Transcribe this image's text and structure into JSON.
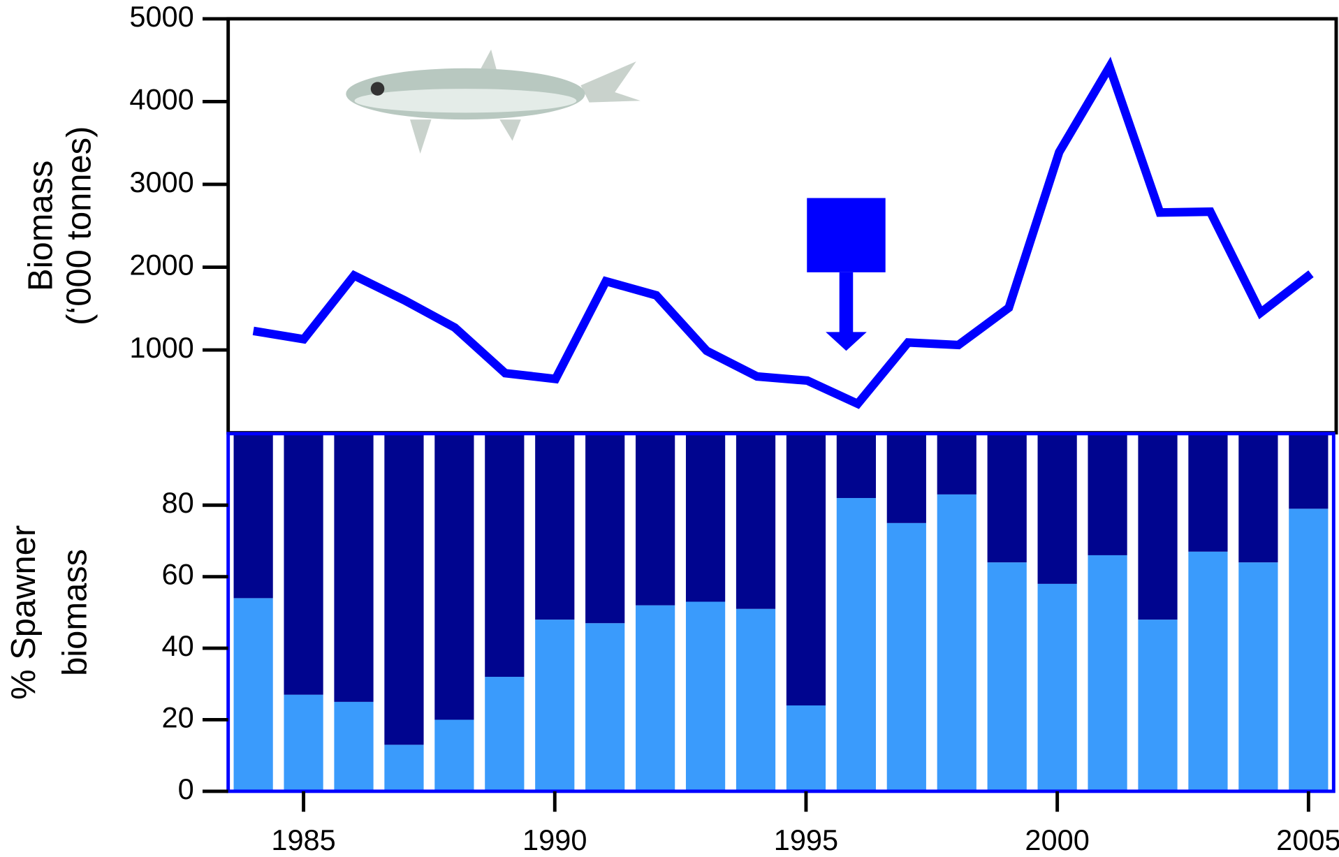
{
  "chart_data": [
    {
      "type": "line",
      "ylabel": [
        "Biomass",
        "(‘000 tonnes)"
      ],
      "x": [
        1984,
        1985,
        1986,
        1987,
        1988,
        1989,
        1990,
        1991,
        1992,
        1993,
        1994,
        1995,
        1996,
        1997,
        1998,
        1999,
        2000,
        2001,
        2002,
        2003,
        2004,
        2005
      ],
      "series": [
        {
          "color": "#0000ff",
          "values": [
            1230,
            1130,
            1900,
            1600,
            1270,
            720,
            650,
            1830,
            1660,
            990,
            680,
            630,
            350,
            1090,
            1060,
            1510,
            3390,
            4420,
            2660,
            2670,
            1450,
            1920
          ]
        }
      ],
      "xlim": [
        1983.5,
        2005.5
      ],
      "ylim": [
        0,
        5000
      ],
      "yticks": [
        1000,
        2000,
        3000,
        4000,
        5000
      ],
      "frame_color": "#000000"
    },
    {
      "type": "stacked_bar",
      "ylabel": [
        "% Spawner",
        "biomass"
      ],
      "x": [
        1984,
        1985,
        1986,
        1987,
        1988,
        1989,
        1990,
        1991,
        1992,
        1993,
        1994,
        1995,
        1996,
        1997,
        1998,
        1999,
        2000,
        2001,
        2002,
        2003,
        2004,
        2005
      ],
      "series": [
        {
          "color": "#3a9bfc",
          "values": [
            54,
            27,
            25,
            13,
            20,
            32,
            48,
            47,
            52,
            53,
            51,
            24,
            82,
            75,
            83,
            64,
            58,
            66,
            48,
            67,
            64,
            79
          ]
        },
        {
          "color": "#00058f",
          "values": [
            46,
            73,
            75,
            87,
            80,
            68,
            52,
            53,
            48,
            47,
            49,
            76,
            18,
            25,
            17,
            36,
            42,
            34,
            52,
            33,
            36,
            21
          ]
        }
      ],
      "xlim": [
        1983.5,
        2005.5
      ],
      "ylim": [
        0,
        100
      ],
      "yticks": [
        0,
        20,
        40,
        60,
        80
      ],
      "xticks": [
        1985,
        1990,
        1995,
        2000,
        2005
      ],
      "frame_color": "#0000ff"
    }
  ]
}
